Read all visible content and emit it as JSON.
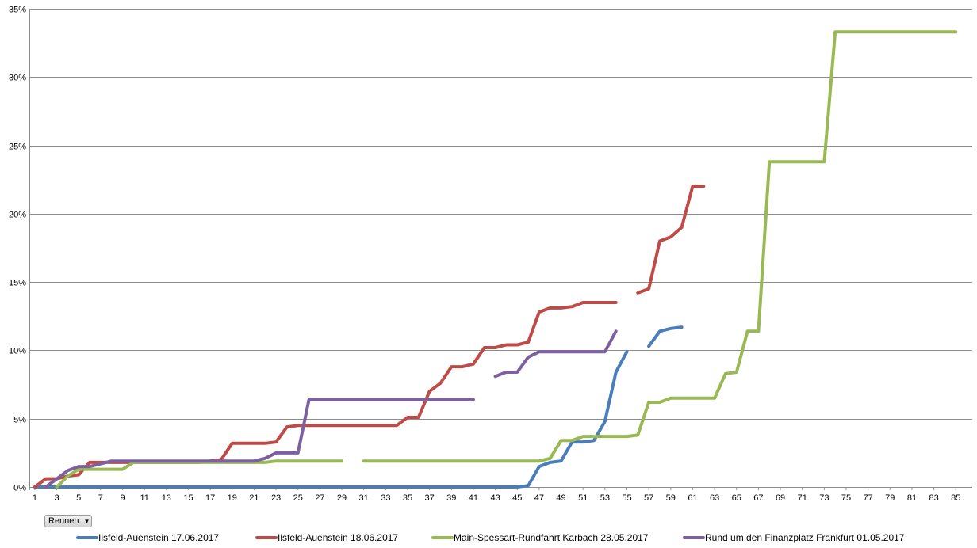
{
  "filter_button": {
    "label": "Rennen",
    "icon": "dropdown-arrow-icon"
  },
  "chart_data": {
    "type": "line",
    "title": "",
    "xlabel": "",
    "ylabel": "",
    "ylim": [
      0,
      35
    ],
    "y_ticks": [
      "0%",
      "5%",
      "10%",
      "15%",
      "20%",
      "25%",
      "30%",
      "35%"
    ],
    "x_range": [
      1,
      86
    ],
    "x_tick_labels": [
      "1",
      "3",
      "5",
      "7",
      "9",
      "11",
      "13",
      "15",
      "17",
      "19",
      "21",
      "23",
      "25",
      "27",
      "29",
      "31",
      "33",
      "35",
      "37",
      "39",
      "41",
      "43",
      "45",
      "47",
      "49",
      "51",
      "53",
      "55",
      "57",
      "59",
      "61",
      "63",
      "65",
      "67",
      "69",
      "71",
      "73",
      "75",
      "77",
      "79",
      "81",
      "83",
      "85"
    ],
    "grid": "horizontal",
    "legend_position": "bottom",
    "series": [
      {
        "name": "Ilsfeld-Auenstein 17.06.2017",
        "color": "#4a7ebb",
        "values": [
          0,
          0,
          0,
          0,
          0,
          0,
          0,
          0,
          0,
          0,
          0,
          0,
          0,
          0,
          0,
          0,
          0,
          0,
          0,
          0,
          0,
          0,
          0,
          0,
          0,
          0,
          0,
          0,
          0,
          0,
          0,
          0,
          0,
          0,
          0,
          0,
          0,
          0,
          0,
          0,
          0,
          0,
          0,
          0,
          0,
          0.1,
          1.5,
          1.8,
          1.9,
          3.3,
          3.3,
          3.4,
          4.8,
          8.4,
          9.9,
          null,
          10.3,
          11.4,
          11.6,
          11.7
        ]
      },
      {
        "name": "Ilsfeld-Auenstein 18.06.2017",
        "color": "#be4b48",
        "values": [
          0,
          0.6,
          0.6,
          0.8,
          0.9,
          1.8,
          1.8,
          1.8,
          1.8,
          1.8,
          1.8,
          1.8,
          1.8,
          1.8,
          1.8,
          1.8,
          1.9,
          2.0,
          3.2,
          3.2,
          3.2,
          3.2,
          3.3,
          4.4,
          4.5,
          4.5,
          4.5,
          4.5,
          4.5,
          4.5,
          4.5,
          4.5,
          4.5,
          4.5,
          5.1,
          5.1,
          7.0,
          7.6,
          8.8,
          8.8,
          9.0,
          10.2,
          10.2,
          10.4,
          10.4,
          10.6,
          12.8,
          13.1,
          13.1,
          13.2,
          13.5,
          13.5,
          13.5,
          13.5,
          null,
          14.2,
          14.5,
          18.0,
          18.3,
          19.0,
          22.0,
          22.0
        ]
      },
      {
        "name": "Main-Spessart-Rundfahrt Karbach 28.05.2017",
        "color": "#98b954",
        "values": [
          null,
          null,
          0,
          0.8,
          1.3,
          1.3,
          1.3,
          1.3,
          1.3,
          1.8,
          1.8,
          1.8,
          1.8,
          1.8,
          1.8,
          1.8,
          1.8,
          1.8,
          1.8,
          1.8,
          1.8,
          1.8,
          1.9,
          1.9,
          1.9,
          1.9,
          1.9,
          1.9,
          1.9,
          null,
          1.9,
          1.9,
          1.9,
          1.9,
          1.9,
          1.9,
          1.9,
          1.9,
          1.9,
          1.9,
          1.9,
          1.9,
          1.9,
          1.9,
          1.9,
          1.9,
          1.9,
          2.1,
          3.4,
          3.4,
          3.7,
          3.7,
          3.7,
          3.7,
          3.7,
          3.8,
          6.2,
          6.2,
          6.5,
          6.5,
          6.5,
          6.5,
          6.5,
          8.3,
          8.4,
          11.4,
          11.4,
          23.8,
          23.8,
          23.8,
          23.8,
          23.8,
          23.8,
          33.3,
          33.3,
          33.3,
          33.3,
          33.3,
          33.3,
          33.3,
          33.3,
          33.3,
          33.3,
          33.3,
          33.3
        ]
      },
      {
        "name": "Rund um den Finanzplatz Frankfurt 01.05.2017",
        "color": "#7d60a0",
        "values": [
          null,
          0,
          0.6,
          1.2,
          1.5,
          1.5,
          1.7,
          1.9,
          1.9,
          1.9,
          1.9,
          1.9,
          1.9,
          1.9,
          1.9,
          1.9,
          1.9,
          1.9,
          1.9,
          1.9,
          1.9,
          2.1,
          2.5,
          2.5,
          2.5,
          6.4,
          6.4,
          6.4,
          6.4,
          6.4,
          6.4,
          6.4,
          6.4,
          6.4,
          6.4,
          6.4,
          6.4,
          6.4,
          6.4,
          6.4,
          6.4,
          null,
          8.1,
          8.4,
          8.4,
          9.5,
          9.9,
          9.9,
          9.9,
          9.9,
          9.9,
          9.9,
          9.9,
          11.4
        ]
      }
    ]
  }
}
